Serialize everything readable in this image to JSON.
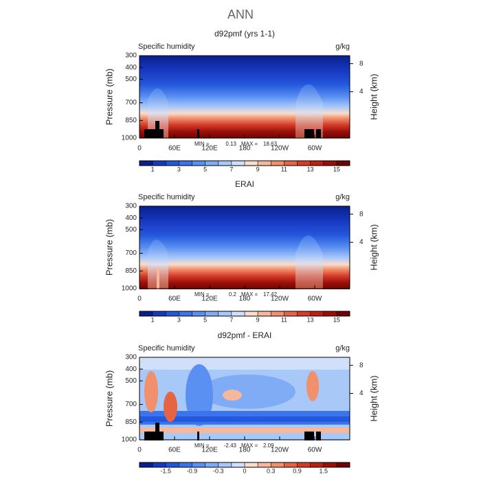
{
  "title": "ANN",
  "chart_data": [
    {
      "type": "contour",
      "title": "d92pmf (yrs 1-1)",
      "left_string": "Specific humidity",
      "right_string": "g/kg",
      "ylabel": "Pressure (mb)",
      "y2label": "Height (km)",
      "ylim": [
        1000,
        300
      ],
      "yticks": [
        300,
        400,
        500,
        700,
        850,
        1000
      ],
      "y2ticks": [
        8,
        4
      ],
      "xlim": [
        0,
        360
      ],
      "xticks": [
        0,
        {
          "value": 60,
          "label": "60E"
        },
        {
          "value": 120,
          "label": "120E"
        },
        180,
        {
          "value": 240,
          "label": "120W"
        },
        {
          "value": 300,
          "label": "60W"
        }
      ],
      "min_label": "MIN =",
      "min": 0.13,
      "max_label": "MAX =",
      "max": 18.63,
      "colorbar": {
        "levels": [
          1,
          2,
          3,
          4,
          5,
          6,
          7,
          8,
          9,
          10,
          11,
          12,
          13,
          14,
          15
        ],
        "ticks": [
          1,
          3,
          5,
          7,
          9,
          11,
          13,
          15
        ],
        "colors": [
          "#08208c",
          "#1838c0",
          "#2458dc",
          "#3c74ec",
          "#5a90f2",
          "#80acf6",
          "#a8c8f8",
          "#d0e0fa",
          "#f8dccc",
          "#f6b89c",
          "#f0906c",
          "#e46444",
          "#d43c28",
          "#bc2010",
          "#9a1008",
          "#700404"
        ]
      }
    },
    {
      "type": "contour",
      "title": "ERAI",
      "left_string": "Specific humidity",
      "right_string": "g/kg",
      "ylabel": "Pressure (mb)",
      "y2label": "Height (km)",
      "ylim": [
        1000,
        300
      ],
      "yticks": [
        300,
        400,
        500,
        700,
        850,
        1000
      ],
      "y2ticks": [
        8,
        4
      ],
      "xlim": [
        0,
        360
      ],
      "xticks": [
        0,
        {
          "value": 60,
          "label": "60E"
        },
        {
          "value": 120,
          "label": "120E"
        },
        180,
        {
          "value": 240,
          "label": "120W"
        },
        {
          "value": 300,
          "label": "60W"
        }
      ],
      "min_label": "MIN =",
      "min": 0.2,
      "max_label": "MAX =",
      "max": 17.42,
      "colorbar": {
        "levels": [
          1,
          2,
          3,
          4,
          5,
          6,
          7,
          8,
          9,
          10,
          11,
          12,
          13,
          14,
          15
        ],
        "ticks": [
          1,
          3,
          5,
          7,
          9,
          11,
          13,
          15
        ],
        "colors": [
          "#08208c",
          "#1838c0",
          "#2458dc",
          "#3c74ec",
          "#5a90f2",
          "#80acf6",
          "#a8c8f8",
          "#d0e0fa",
          "#f8dccc",
          "#f6b89c",
          "#f0906c",
          "#e46444",
          "#d43c28",
          "#bc2010",
          "#9a1008",
          "#700404"
        ]
      }
    },
    {
      "type": "contour",
      "title": "d92pmf - ERAI",
      "left_string": "Specific humidity",
      "right_string": "g/kg",
      "ylabel": "Pressure (mb)",
      "y2label": "Height (km)",
      "ylim": [
        1000,
        300
      ],
      "yticks": [
        300,
        400,
        500,
        700,
        850,
        1000
      ],
      "y2ticks": [
        8,
        4
      ],
      "xlim": [
        0,
        360
      ],
      "xticks": [
        0,
        {
          "value": 60,
          "label": "60E"
        },
        {
          "value": 120,
          "label": "120E"
        },
        180,
        {
          "value": 240,
          "label": "120W"
        },
        {
          "value": 300,
          "label": "60W"
        }
      ],
      "min_label": "MIN =",
      "min": -2.43,
      "max_label": "MAX =",
      "max": 2.09,
      "colorbar": {
        "levels": [
          -1.8,
          -1.5,
          -1.2,
          -0.9,
          -0.6,
          -0.3,
          -0.1,
          0,
          0.1,
          0.3,
          0.6,
          0.9,
          1.2,
          1.5,
          1.8
        ],
        "ticks": [
          -1.5,
          -0.9,
          -0.3,
          0,
          0.3,
          0.9,
          1.5
        ],
        "colors": [
          "#08208c",
          "#1838c0",
          "#2458dc",
          "#3c74ec",
          "#5a90f2",
          "#80acf6",
          "#a8c8f8",
          "#d0e0fa",
          "#f8dccc",
          "#f6b89c",
          "#f0906c",
          "#e46444",
          "#d43c28",
          "#bc2010",
          "#9a1008",
          "#700404"
        ]
      }
    }
  ]
}
